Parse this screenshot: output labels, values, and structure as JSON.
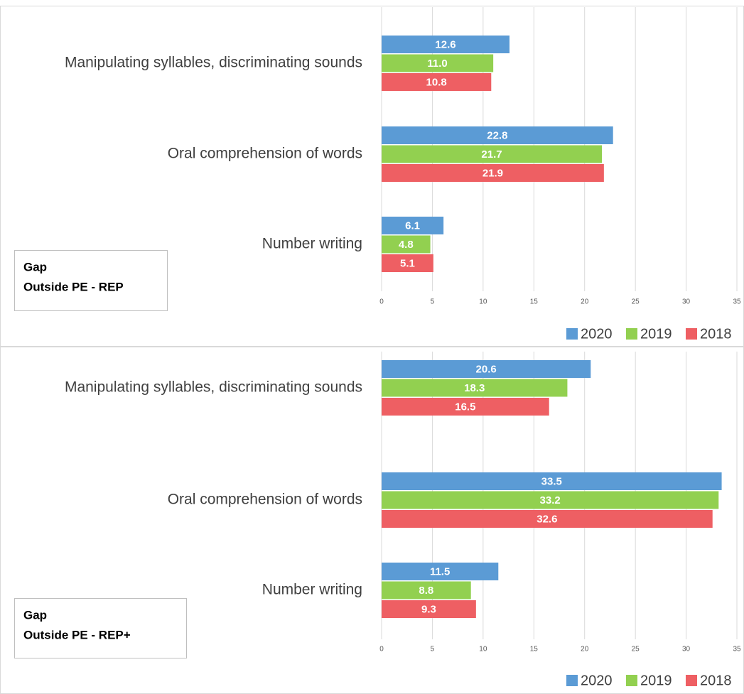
{
  "chart_data": [
    {
      "type": "hbar",
      "categories": [
        "Manipulating syllables, discriminating sounds",
        "Oral comprehension of words",
        "Number writing"
      ],
      "series": [
        {
          "name": "2020",
          "color": "#5b9bd5",
          "values": [
            12.6,
            22.8,
            6.1
          ],
          "value_labels": [
            "12.6",
            "22.8",
            "6.1"
          ]
        },
        {
          "name": "2019",
          "color": "#92d050",
          "values": [
            11,
            21.7,
            4.8
          ],
          "value_labels": [
            "11.0",
            "21.7",
            "4.8"
          ]
        },
        {
          "name": "2018",
          "color": "#ee5f63",
          "values": [
            10.8,
            21.9,
            5.1
          ],
          "value_labels": [
            "10.8",
            "21.9",
            "5.1"
          ]
        }
      ],
      "xlim": [
        0,
        35
      ],
      "xticks": [
        0,
        5,
        10,
        15,
        20,
        25,
        30,
        35
      ],
      "grid": true,
      "legend": "bottom-right",
      "annotation": [
        "Gap",
        "Outside PE - REP"
      ]
    },
    {
      "type": "hbar",
      "categories": [
        "Manipulating syllables, discriminating sounds",
        "Oral comprehension of words",
        "Number writing"
      ],
      "series": [
        {
          "name": "2020",
          "color": "#5b9bd5",
          "values": [
            20.6,
            33.5,
            11.5
          ],
          "value_labels": [
            "20.6",
            "33.5",
            "11.5"
          ]
        },
        {
          "name": "2019",
          "color": "#92d050",
          "values": [
            18.3,
            33.2,
            8.8
          ],
          "value_labels": [
            "18.3",
            "33.2",
            "8.8"
          ]
        },
        {
          "name": "2018",
          "color": "#ee5f63",
          "values": [
            16.5,
            32.6,
            9.3
          ],
          "value_labels": [
            "16.5",
            "32.6",
            "9.3"
          ]
        }
      ],
      "xlim": [
        0,
        35
      ],
      "xticks": [
        0,
        5,
        10,
        15,
        20,
        25,
        30,
        35
      ],
      "grid": true,
      "legend": "bottom-right",
      "annotation": [
        "Gap",
        "Outside PE - REP+"
      ]
    }
  ]
}
